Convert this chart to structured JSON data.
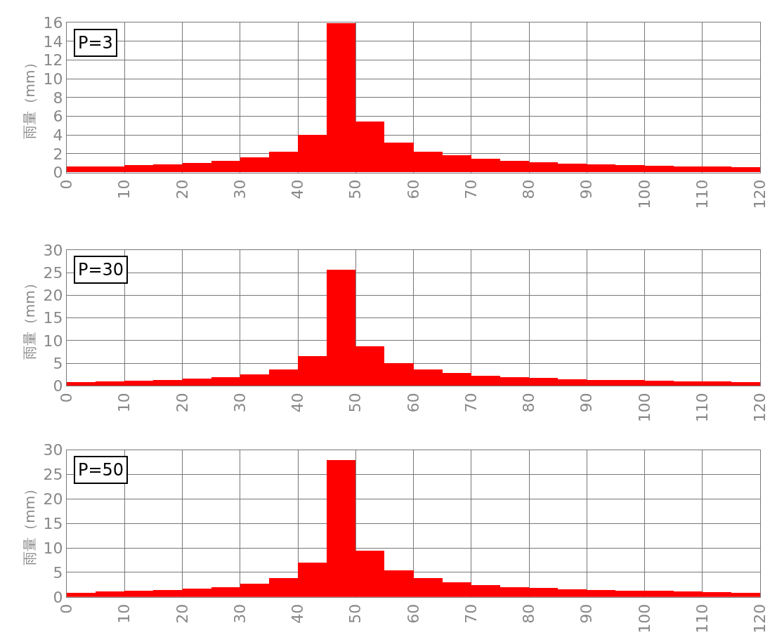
{
  "chart_data": [
    {
      "type": "histogram",
      "ylabel": "雨量（mm）",
      "annotations": [
        "P=3"
      ],
      "color": "#ff0000",
      "grid": true,
      "bins": [
        0,
        5,
        10,
        15,
        20,
        25,
        30,
        35,
        40,
        45,
        50,
        55,
        60,
        65,
        70,
        75,
        80,
        85,
        90,
        95,
        100,
        105,
        110,
        115,
        120
      ],
      "values": [
        0.6,
        0.65,
        0.75,
        0.85,
        0.97,
        1.25,
        1.6,
        2.2,
        4.0,
        15.9,
        5.4,
        3.15,
        2.2,
        1.8,
        1.45,
        1.25,
        1.05,
        0.9,
        0.83,
        0.77,
        0.7,
        0.62,
        0.6,
        0.52
      ],
      "xlim": [
        0,
        120
      ],
      "xticks": [
        0,
        10,
        20,
        30,
        40,
        50,
        60,
        70,
        80,
        90,
        100,
        110,
        120
      ],
      "ylim": [
        0,
        16
      ],
      "yticks": [
        0,
        2,
        4,
        6,
        8,
        10,
        12,
        14,
        16
      ]
    },
    {
      "type": "histogram",
      "ylabel": "雨量（mm）",
      "annotations": [
        "P=30"
      ],
      "color": "#ff0000",
      "grid": true,
      "bins": [
        0,
        5,
        10,
        15,
        20,
        25,
        30,
        35,
        40,
        45,
        50,
        55,
        60,
        65,
        70,
        75,
        80,
        85,
        90,
        95,
        100,
        105,
        110,
        115,
        120
      ],
      "values": [
        0.85,
        1.0,
        1.1,
        1.25,
        1.55,
        1.95,
        2.5,
        3.6,
        6.5,
        25.7,
        8.7,
        5.1,
        3.7,
        2.85,
        2.3,
        1.95,
        1.75,
        1.5,
        1.35,
        1.3,
        1.2,
        1.05,
        0.95,
        0.85
      ],
      "xlim": [
        0,
        120
      ],
      "xticks": [
        0,
        10,
        20,
        30,
        40,
        50,
        60,
        70,
        80,
        90,
        100,
        110,
        120
      ],
      "ylim": [
        0,
        30
      ],
      "yticks": [
        0,
        5,
        10,
        15,
        20,
        25,
        30
      ]
    },
    {
      "type": "histogram",
      "ylabel": "雨量（mm）",
      "annotations": [
        "P=50"
      ],
      "color": "#ff0000",
      "grid": true,
      "bins": [
        0,
        5,
        10,
        15,
        20,
        25,
        30,
        35,
        40,
        45,
        50,
        55,
        60,
        65,
        70,
        75,
        80,
        85,
        90,
        95,
        100,
        105,
        110,
        115,
        120
      ],
      "values": [
        0.95,
        1.1,
        1.25,
        1.45,
        1.7,
        2.05,
        2.7,
        3.9,
        7.0,
        28.0,
        9.5,
        5.5,
        3.85,
        3.1,
        2.5,
        2.05,
        1.85,
        1.6,
        1.45,
        1.35,
        1.25,
        1.15,
        1.0,
        0.9
      ],
      "xlim": [
        0,
        120
      ],
      "xticks": [
        0,
        10,
        20,
        30,
        40,
        50,
        60,
        70,
        80,
        90,
        100,
        110,
        120
      ],
      "ylim": [
        0,
        30
      ],
      "yticks": [
        0,
        5,
        10,
        15,
        20,
        25,
        30
      ]
    }
  ]
}
